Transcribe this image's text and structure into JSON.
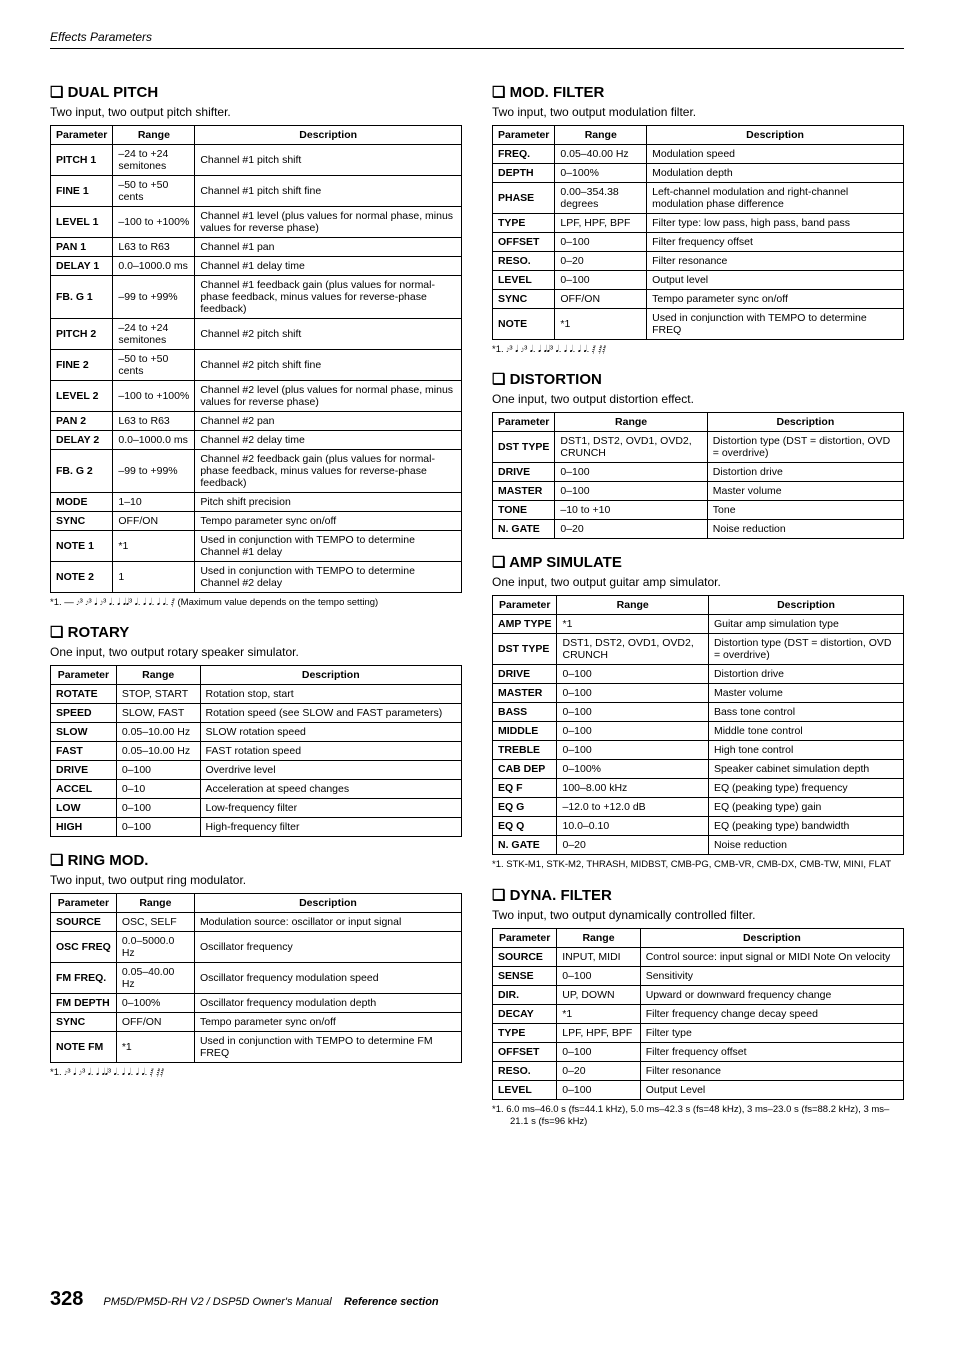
{
  "header": "Effects Parameters",
  "left": {
    "dualPitch": {
      "title": "DUAL PITCH",
      "desc": "Two input, two output pitch shifter.",
      "cols": [
        "Parameter",
        "Range",
        "Description"
      ],
      "rows": [
        [
          "PITCH 1",
          "–24 to +24 semitones",
          "Channel #1 pitch shift"
        ],
        [
          "FINE 1",
          "–50 to +50 cents",
          "Channel #1 pitch shift fine"
        ],
        [
          "LEVEL 1",
          "–100 to +100%",
          "Channel #1 level (plus values for normal phase, minus values for reverse phase)"
        ],
        [
          "PAN 1",
          "L63 to R63",
          "Channel #1 pan"
        ],
        [
          "DELAY 1",
          "0.0–1000.0 ms",
          "Channel #1 delay time"
        ],
        [
          "FB. G 1",
          "–99 to +99%",
          "Channel #1 feedback gain (plus values for normal-phase feedback, minus values for reverse-phase feedback)"
        ],
        [
          "PITCH 2",
          "–24 to +24 semitones",
          "Channel #2 pitch shift"
        ],
        [
          "FINE 2",
          "–50 to +50 cents",
          "Channel #2 pitch shift fine"
        ],
        [
          "LEVEL 2",
          "–100 to +100%",
          "Channel #2 level (plus values for normal phase, minus values for reverse phase)"
        ],
        [
          "PAN 2",
          "L63 to R63",
          "Channel #2 pan"
        ],
        [
          "DELAY 2",
          "0.0–1000.0 ms",
          "Channel #2 delay time"
        ],
        [
          "FB. G 2",
          "–99 to +99%",
          "Channel #2 feedback gain (plus values for normal-phase feedback, minus values for reverse-phase feedback)"
        ],
        [
          "MODE",
          "1–10",
          "Pitch shift precision"
        ],
        [
          "SYNC",
          "OFF/ON",
          "Tempo parameter sync on/off"
        ],
        [
          "NOTE 1",
          "*1",
          "Used in conjunction with TEMPO to determine Channel #1 delay"
        ],
        [
          "NOTE 2",
          "1",
          "Used in conjunction with TEMPO to determine Channel #2 delay"
        ]
      ],
      "footnote": "*1. — 𝆕³ 𝆕³ 𝅘𝅥 𝆕³ 𝅘𝅥. 𝅘𝅥 𝅘𝅥𝅘𝅥³ 𝅘𝅥. 𝅘𝅥 𝅘𝅥. 𝅘𝅥 𝅘𝅥. 𝅁\n(Maximum value depends on the tempo setting)"
    },
    "rotary": {
      "title": "ROTARY",
      "desc": "One input, two output rotary speaker simulator.",
      "cols": [
        "Parameter",
        "Range",
        "Description"
      ],
      "rows": [
        [
          "ROTATE",
          "STOP, START",
          "Rotation stop, start"
        ],
        [
          "SPEED",
          "SLOW, FAST",
          "Rotation speed (see SLOW and FAST parameters)"
        ],
        [
          "SLOW",
          "0.05–10.00 Hz",
          "SLOW rotation speed"
        ],
        [
          "FAST",
          "0.05–10.00 Hz",
          "FAST rotation speed"
        ],
        [
          "DRIVE",
          "0–100",
          "Overdrive level"
        ],
        [
          "ACCEL",
          "0–10",
          "Acceleration at speed changes"
        ],
        [
          "LOW",
          "0–100",
          "Low-frequency filter"
        ],
        [
          "HIGH",
          "0–100",
          "High-frequency filter"
        ]
      ]
    },
    "ringMod": {
      "title": "RING MOD.",
      "desc": "Two input, two output ring modulator.",
      "cols": [
        "Parameter",
        "Range",
        "Description"
      ],
      "rows": [
        [
          "SOURCE",
          "OSC, SELF",
          "Modulation source: oscillator or input signal"
        ],
        [
          "OSC FREQ",
          "0.0–5000.0 Hz",
          "Oscillator frequency"
        ],
        [
          "FM FREQ.",
          "0.05–40.00 Hz",
          "Oscillator frequency modulation speed"
        ],
        [
          "FM DEPTH",
          "0–100%",
          "Oscillator frequency modulation depth"
        ],
        [
          "SYNC",
          "OFF/ON",
          "Tempo parameter sync on/off"
        ],
        [
          "NOTE FM",
          "*1",
          "Used in conjunction with TEMPO to determine FM FREQ"
        ]
      ],
      "footnote": "*1. 𝆕³ 𝅘𝅥 𝆕³ 𝅘𝅥. 𝅘𝅥 𝅘𝅥𝅘𝅥³ 𝅘𝅥. 𝅘𝅥 𝅘𝅥. 𝅘𝅥 𝅘𝅥. 𝅁 𝅁𝅁"
    }
  },
  "right": {
    "modFilter": {
      "title": "MOD. FILTER",
      "desc": "Two input, two output modulation filter.",
      "cols": [
        "Parameter",
        "Range",
        "Description"
      ],
      "rows": [
        [
          "FREQ.",
          "0.05–40.00 Hz",
          "Modulation speed"
        ],
        [
          "DEPTH",
          "0–100%",
          "Modulation depth"
        ],
        [
          "PHASE",
          "0.00–354.38 degrees",
          "Left-channel modulation and right-channel modulation phase difference"
        ],
        [
          "TYPE",
          "LPF, HPF, BPF",
          "Filter type: low pass, high pass, band pass"
        ],
        [
          "OFFSET",
          "0–100",
          "Filter frequency offset"
        ],
        [
          "RESO.",
          "0–20",
          "Filter resonance"
        ],
        [
          "LEVEL",
          "0–100",
          "Output level"
        ],
        [
          "SYNC",
          "OFF/ON",
          "Tempo parameter sync on/off"
        ],
        [
          "NOTE",
          "*1",
          "Used in conjunction with TEMPO to determine FREQ"
        ]
      ],
      "footnote": "*1. 𝆕³ 𝅘𝅥 𝆕³ 𝅘𝅥. 𝅘𝅥 𝅘𝅥𝅘𝅥³ 𝅘𝅥. 𝅘𝅥 𝅘𝅥. 𝅘𝅥 𝅘𝅥. 𝅁 𝅁𝅁"
    },
    "distortion": {
      "title": "DISTORTION",
      "desc": "One input, two output distortion effect.",
      "cols": [
        "Parameter",
        "Range",
        "Description"
      ],
      "rows": [
        [
          "DST TYPE",
          "DST1, DST2, OVD1, OVD2, CRUNCH",
          "Distortion type (DST = distortion, OVD = overdrive)"
        ],
        [
          "DRIVE",
          "0–100",
          "Distortion drive"
        ],
        [
          "MASTER",
          "0–100",
          "Master volume"
        ],
        [
          "TONE",
          "–10 to +10",
          "Tone"
        ],
        [
          "N. GATE",
          "0–20",
          "Noise reduction"
        ]
      ]
    },
    "ampSimulate": {
      "title": "AMP SIMULATE",
      "desc": "One input, two output guitar amp simulator.",
      "cols": [
        "Parameter",
        "Range",
        "Description"
      ],
      "rows": [
        [
          "AMP TYPE",
          "*1",
          "Guitar amp simulation type"
        ],
        [
          "DST TYPE",
          "DST1, DST2, OVD1, OVD2, CRUNCH",
          "Distortion type (DST = distortion, OVD = overdrive)"
        ],
        [
          "DRIVE",
          "0–100",
          "Distortion drive"
        ],
        [
          "MASTER",
          "0–100",
          "Master volume"
        ],
        [
          "BASS",
          "0–100",
          "Bass tone control"
        ],
        [
          "MIDDLE",
          "0–100",
          "Middle tone control"
        ],
        [
          "TREBLE",
          "0–100",
          "High tone control"
        ],
        [
          "CAB DEP",
          "0–100%",
          "Speaker cabinet simulation depth"
        ],
        [
          "EQ F",
          "100–8.00 kHz",
          "EQ (peaking type) frequency"
        ],
        [
          "EQ G",
          "–12.0 to +12.0 dB",
          "EQ (peaking type) gain"
        ],
        [
          "EQ Q",
          "10.0–0.10",
          "EQ (peaking type) bandwidth"
        ],
        [
          "N. GATE",
          "0–20",
          "Noise reduction"
        ]
      ],
      "footnote": "*1. STK-M1, STK-M2, THRASH, MIDBST, CMB-PG, CMB-VR, CMB-DX, CMB-TW, MINI, FLAT"
    },
    "dynaFilter": {
      "title": "DYNA. FILTER",
      "desc": "Two input, two output dynamically controlled filter.",
      "cols": [
        "Parameter",
        "Range",
        "Description"
      ],
      "rows": [
        [
          "SOURCE",
          "INPUT, MIDI",
          "Control source: input signal or MIDI Note On velocity"
        ],
        [
          "SENSE",
          "0–100",
          "Sensitivity"
        ],
        [
          "DIR.",
          "UP, DOWN",
          "Upward or downward frequency change"
        ],
        [
          "DECAY",
          "*1",
          "Filter frequency change decay speed"
        ],
        [
          "TYPE",
          "LPF, HPF, BPF",
          "Filter type"
        ],
        [
          "OFFSET",
          "0–100",
          "Filter frequency offset"
        ],
        [
          "RESO.",
          "0–20",
          "Filter resonance"
        ],
        [
          "LEVEL",
          "0–100",
          "Output Level"
        ]
      ],
      "footnote": "*1. 6.0 ms–46.0 s (fs=44.1 kHz), 5.0 ms–42.3 s (fs=48 kHz), 3 ms–23.0 s (fs=88.2 kHz), 3 ms–21.1 s (fs=96 kHz)"
    }
  },
  "footer": {
    "page": "328",
    "manual": "PM5D/PM5D-RH V2 / DSP5D Owner's Manual",
    "section": "Reference section"
  }
}
